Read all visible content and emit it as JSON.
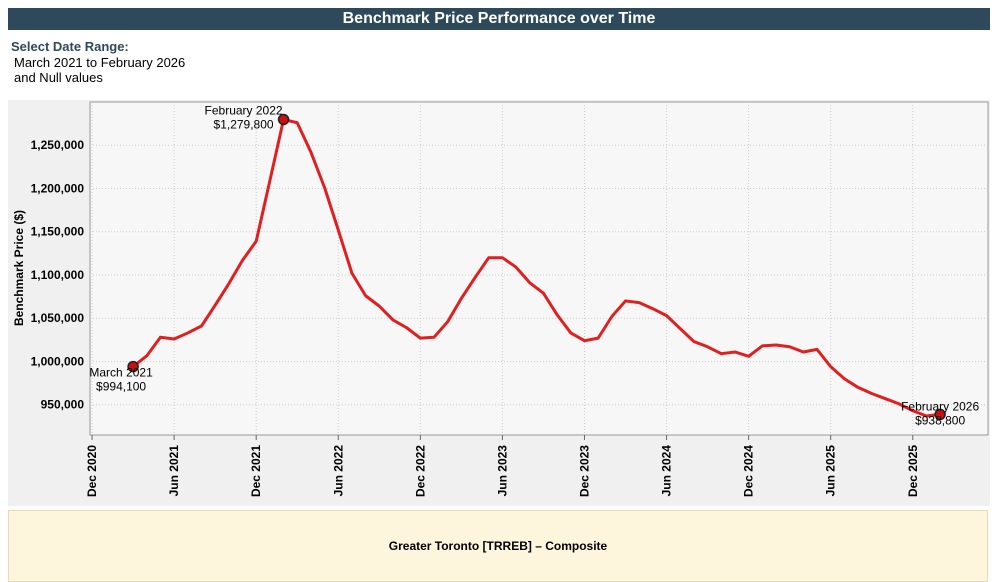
{
  "header": {
    "title": "Benchmark Price Performance over Time",
    "select_label": "Select Date Range:",
    "range": "March 2021 to February 2026",
    "null_note": "and Null values"
  },
  "footer": {
    "label": "Greater Toronto [TRREB] – Composite"
  },
  "chart_data": {
    "type": "line",
    "y_label": "Benchmark Price ($)",
    "color": "#e02020",
    "grid": true,
    "x": [
      "Mar 2021",
      "Apr 2021",
      "May 2021",
      "Jun 2021",
      "Jul 2021",
      "Aug 2021",
      "Sep 2021",
      "Oct 2021",
      "Nov 2021",
      "Dec 2021",
      "Jan 2022",
      "Feb 2022",
      "Mar 2022",
      "Apr 2022",
      "May 2022",
      "Jun 2022",
      "Jul 2022",
      "Aug 2022",
      "Sep 2022",
      "Oct 2022",
      "Nov 2022",
      "Dec 2022",
      "Jan 2023",
      "Feb 2023",
      "Mar 2023",
      "Apr 2023",
      "May 2023",
      "Jun 2023",
      "Jul 2023",
      "Aug 2023",
      "Sep 2023",
      "Oct 2023",
      "Nov 2023",
      "Dec 2023",
      "Jan 2024",
      "Feb 2024",
      "Mar 2024",
      "Apr 2024",
      "May 2024",
      "Jun 2024",
      "Jul 2024",
      "Aug 2024",
      "Sep 2024",
      "Oct 2024",
      "Nov 2024",
      "Dec 2024",
      "Jan 2025",
      "Feb 2025",
      "Mar 2025",
      "Apr 2025",
      "May 2025",
      "Jun 2025",
      "Jul 2025",
      "Aug 2025",
      "Sep 2025",
      "Oct 2025",
      "Nov 2025",
      "Dec 2025",
      "Jan 2026",
      "Feb 2026"
    ],
    "values": [
      994100,
      1006500,
      1028000,
      1026000,
      1033000,
      1041000,
      1065000,
      1090000,
      1117000,
      1139000,
      1209000,
      1279800,
      1276000,
      1242000,
      1201000,
      1152000,
      1102000,
      1076000,
      1064000,
      1048000,
      1039000,
      1027000,
      1028000,
      1046000,
      1073000,
      1097000,
      1120000,
      1120000,
      1109000,
      1091000,
      1079000,
      1054000,
      1033000,
      1024000,
      1027000,
      1052000,
      1070000,
      1068000,
      1061000,
      1053000,
      1038000,
      1023000,
      1017000,
      1009000,
      1011000,
      1006000,
      1018000,
      1019000,
      1017000,
      1011000,
      1014000,
      994000,
      980000,
      970000,
      963000,
      957000,
      951000,
      943000,
      937000,
      938800
    ],
    "xlim": [
      "Dec 2020",
      "May 2026"
    ],
    "xticks": [
      "Dec 2020",
      "Jun 2021",
      "Dec 2021",
      "Jun 2022",
      "Dec 2022",
      "Jun 2023",
      "Dec 2023",
      "Jun 2024",
      "Dec 2024",
      "Jun 2025",
      "Dec 2025"
    ],
    "ylim": [
      915000,
      1300000
    ],
    "yticks": [
      {
        "value": 950000,
        "label": "950,000"
      },
      {
        "value": 1000000,
        "label": "1,000,000"
      },
      {
        "value": 1050000,
        "label": "1,050,000"
      },
      {
        "value": 1100000,
        "label": "1,100,000"
      },
      {
        "value": 1150000,
        "label": "1,150,000"
      },
      {
        "value": 1200000,
        "label": "1,200,000"
      },
      {
        "value": 1250000,
        "label": "1,250,000"
      }
    ],
    "annotations": [
      {
        "x": "Mar 2021",
        "title": "March 2021",
        "value": "$994,100"
      },
      {
        "x": "Feb 2022",
        "title": "February 2022",
        "value": "$1,279,800"
      },
      {
        "x": "Feb 2026",
        "title": "February 2026",
        "value": "$938,800"
      }
    ]
  }
}
